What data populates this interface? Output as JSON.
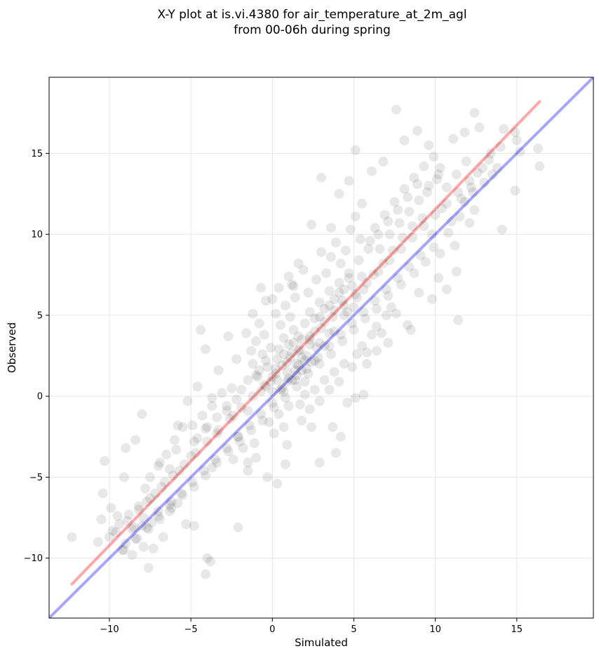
{
  "chart_data": {
    "type": "scatter",
    "title_lines": [
      "X-Y plot at is.vi.4380 for air_temperature_at_2m_agl",
      "from 00-06h during spring"
    ],
    "xlabel": "Simulated",
    "ylabel": "Observed",
    "xlim": [
      -13.7,
      19.7
    ],
    "ylim": [
      -13.7,
      19.7
    ],
    "xticks": [
      -10,
      -5,
      0,
      5,
      10,
      15
    ],
    "yticks": [
      -10,
      -5,
      0,
      5,
      10,
      15
    ],
    "xtick_labels": [
      "−10",
      "−5",
      "0",
      "5",
      "10",
      "15"
    ],
    "ytick_labels": [
      "−10",
      "−5",
      "0",
      "5",
      "10",
      "15"
    ],
    "grid": true,
    "point_color": "#000000",
    "point_alpha": 0.09,
    "points": [
      [
        -12.3,
        -8.7
      ],
      [
        -10.7,
        -9.0
      ],
      [
        -10.3,
        -4.0
      ],
      [
        -10.4,
        -6.0
      ],
      [
        -9.9,
        -6.9
      ],
      [
        -10.5,
        -7.6
      ],
      [
        -9.5,
        -7.4
      ],
      [
        -9.1,
        -5.0
      ],
      [
        -9.0,
        -3.2
      ],
      [
        -8.4,
        -2.7
      ],
      [
        -8.0,
        -1.1
      ],
      [
        -8.6,
        -8.2
      ],
      [
        -8.0,
        -8.0
      ],
      [
        -7.6,
        -10.6
      ],
      [
        -7.3,
        -9.4
      ],
      [
        -7.9,
        -9.3
      ],
      [
        -8.6,
        -9.8
      ],
      [
        -6.7,
        -8.7
      ],
      [
        -6.9,
        -4.1
      ],
      [
        -6.3,
        -4.5
      ],
      [
        -5.8,
        -1.8
      ],
      [
        -5.2,
        -0.3
      ],
      [
        -4.6,
        0.6
      ],
      [
        -4.4,
        4.1
      ],
      [
        -4.1,
        2.9
      ],
      [
        -3.7,
        -0.1
      ],
      [
        -3.3,
        1.6
      ],
      [
        -2.7,
        3.7
      ],
      [
        -2.2,
        2.3
      ],
      [
        -1.2,
        5.1
      ],
      [
        -0.7,
        6.7
      ],
      [
        -0.4,
        5.9
      ],
      [
        0.0,
        6.0
      ],
      [
        0.4,
        6.7
      ],
      [
        1.2,
        6.9
      ],
      [
        2.4,
        10.6
      ],
      [
        3.0,
        13.5
      ],
      [
        3.6,
        8.6
      ],
      [
        4.1,
        12.5
      ],
      [
        4.7,
        13.3
      ],
      [
        5.1,
        15.2
      ],
      [
        5.5,
        11.9
      ],
      [
        6.1,
        13.9
      ],
      [
        6.8,
        14.5
      ],
      [
        7.6,
        17.7
      ],
      [
        8.1,
        15.8
      ],
      [
        8.9,
        16.4
      ],
      [
        9.6,
        15.5
      ],
      [
        10.3,
        14.1
      ],
      [
        11.1,
        15.9
      ],
      [
        11.8,
        16.3
      ],
      [
        12.4,
        17.5
      ],
      [
        12.7,
        16.6
      ],
      [
        13.3,
        14.6
      ],
      [
        14.2,
        16.5
      ],
      [
        14.9,
        16.3
      ],
      [
        15.0,
        15.8
      ],
      [
        15.2,
        15.1
      ],
      [
        16.3,
        15.3
      ],
      [
        16.4,
        14.2
      ],
      [
        14.9,
        12.7
      ],
      [
        14.1,
        10.3
      ],
      [
        12.1,
        10.7
      ],
      [
        11.3,
        7.7
      ],
      [
        11.4,
        4.7
      ],
      [
        10.2,
        7.3
      ],
      [
        10.7,
        6.6
      ],
      [
        9.8,
        6.0
      ],
      [
        9.0,
        6.4
      ],
      [
        8.3,
        4.4
      ],
      [
        7.1,
        3.3
      ],
      [
        8.5,
        4.1
      ],
      [
        6.4,
        2.8
      ],
      [
        5.8,
        2.0
      ],
      [
        5.6,
        0.1
      ],
      [
        5.1,
        -0.1
      ],
      [
        4.6,
        -0.4
      ],
      [
        4.2,
        -2.5
      ],
      [
        3.7,
        -1.9
      ],
      [
        3.9,
        -3.5
      ],
      [
        2.9,
        -4.1
      ],
      [
        2.4,
        -1.9
      ],
      [
        1.8,
        -1.5
      ],
      [
        0.9,
        -3.0
      ],
      [
        0.8,
        -4.2
      ],
      [
        0.3,
        -5.4
      ],
      [
        -0.3,
        -5.0
      ],
      [
        -1.0,
        -3.8
      ],
      [
        -1.5,
        -4.1
      ],
      [
        -2.1,
        -8.1
      ],
      [
        -3.7,
        -4.4
      ],
      [
        -3.8,
        -10.2
      ],
      [
        -4.0,
        -10.0
      ],
      [
        -4.1,
        -11.0
      ],
      [
        -4.8,
        -8.0
      ],
      [
        -5.3,
        -7.9
      ],
      [
        -5.8,
        -6.6
      ],
      [
        -6.3,
        -7.1
      ],
      [
        -7.0,
        -7.1
      ],
      [
        -7.2,
        -6.0
      ],
      [
        -7.8,
        -5.7
      ],
      [
        -6.2,
        -6.5
      ],
      [
        -6.6,
        -5.3
      ],
      [
        -5.7,
        -4.6
      ],
      [
        -5.9,
        -3.3
      ],
      [
        -5.0,
        -3.7
      ],
      [
        -4.8,
        -2.8
      ],
      [
        -4.1,
        -2.0
      ],
      [
        -3.4,
        -2.3
      ],
      [
        -2.8,
        -0.6
      ],
      [
        -2.4,
        -1.2
      ],
      [
        -1.9,
        0.4
      ],
      [
        -1.5,
        -0.9
      ],
      [
        -1.0,
        1.3
      ],
      [
        -0.7,
        0.3
      ],
      [
        -0.4,
        2.2
      ],
      [
        -0.1,
        0.9
      ],
      [
        0.2,
        1.7
      ],
      [
        0.5,
        0.4
      ],
      [
        0.7,
        2.6
      ],
      [
        1.0,
        1.1
      ],
      [
        1.3,
        3.3
      ],
      [
        1.6,
        1.9
      ],
      [
        1.8,
        2.4
      ],
      [
        2.0,
        0.9
      ],
      [
        2.3,
        3.7
      ],
      [
        2.6,
        2.2
      ],
      [
        2.9,
        4.9
      ],
      [
        3.2,
        3.1
      ],
      [
        3.5,
        5.6
      ],
      [
        3.8,
        4.0
      ],
      [
        4.1,
        6.4
      ],
      [
        4.4,
        5.0
      ],
      [
        4.7,
        7.3
      ],
      [
        5.0,
        5.5
      ],
      [
        5.3,
        8.4
      ],
      [
        5.6,
        6.6
      ],
      [
        5.9,
        9.1
      ],
      [
        6.2,
        7.5
      ],
      [
        6.5,
        10.0
      ],
      [
        6.8,
        8.2
      ],
      [
        7.1,
        10.8
      ],
      [
        7.4,
        9.0
      ],
      [
        7.7,
        11.5
      ],
      [
        8.0,
        9.8
      ],
      [
        8.3,
        12.3
      ],
      [
        8.6,
        10.5
      ],
      [
        8.9,
        13.1
      ],
      [
        9.2,
        11.0
      ],
      [
        9.5,
        12.6
      ],
      [
        9.8,
        10.0
      ],
      [
        10.1,
        13.4
      ],
      [
        10.4,
        11.6
      ],
      [
        10.7,
        12.9
      ],
      [
        11.0,
        10.8
      ],
      [
        11.3,
        13.7
      ],
      [
        11.6,
        12.2
      ],
      [
        11.9,
        14.5
      ],
      [
        12.2,
        12.9
      ],
      [
        12.6,
        13.8
      ],
      [
        13.0,
        13.2
      ],
      [
        13.4,
        15.0
      ],
      [
        13.8,
        14.1
      ],
      [
        12.4,
        11.5
      ],
      [
        11.2,
        9.3
      ],
      [
        10.3,
        8.8
      ],
      [
        9.4,
        8.3
      ],
      [
        8.7,
        7.6
      ],
      [
        7.9,
        6.9
      ],
      [
        7.1,
        6.2
      ],
      [
        6.4,
        5.4
      ],
      [
        5.7,
        4.8
      ],
      [
        5.0,
        4.1
      ],
      [
        4.3,
        3.4
      ],
      [
        3.6,
        2.6
      ],
      [
        2.9,
        2.0
      ],
      [
        2.2,
        1.4
      ],
      [
        1.5,
        0.6
      ],
      [
        0.8,
        -0.1
      ],
      [
        0.1,
        -0.7
      ],
      [
        -0.6,
        -1.5
      ],
      [
        -1.3,
        -2.1
      ],
      [
        -2.0,
        -2.8
      ],
      [
        -2.7,
        -3.4
      ],
      [
        -3.4,
        -4.1
      ],
      [
        -4.1,
        -4.9
      ],
      [
        -4.8,
        -5.6
      ],
      [
        -5.5,
        -6.1
      ],
      [
        -6.2,
        -6.9
      ],
      [
        -6.9,
        -7.6
      ],
      [
        -7.6,
        -8.2
      ],
      [
        -8.3,
        -8.8
      ],
      [
        -9.0,
        -9.1
      ],
      [
        -9.6,
        -8.4
      ],
      [
        -8.9,
        -7.7
      ],
      [
        -8.2,
        -7.0
      ],
      [
        -7.5,
        -6.3
      ],
      [
        -6.8,
        -5.6
      ],
      [
        -6.1,
        -4.9
      ],
      [
        -5.4,
        -4.2
      ],
      [
        -4.7,
        -3.5
      ],
      [
        -4.0,
        -2.8
      ],
      [
        -3.3,
        -2.1
      ],
      [
        -2.6,
        -1.4
      ],
      [
        -1.9,
        -0.7
      ],
      [
        -1.2,
        0.0
      ],
      [
        -0.5,
        0.7
      ],
      [
        0.2,
        1.4
      ],
      [
        0.9,
        2.1
      ],
      [
        1.6,
        2.8
      ],
      [
        2.3,
        3.5
      ],
      [
        3.0,
        4.2
      ],
      [
        3.7,
        4.9
      ],
      [
        4.4,
        5.6
      ],
      [
        5.1,
        6.3
      ],
      [
        5.8,
        7.0
      ],
      [
        6.5,
        7.7
      ],
      [
        7.2,
        8.4
      ],
      [
        7.9,
        9.1
      ],
      [
        8.6,
        9.8
      ],
      [
        9.3,
        10.5
      ],
      [
        10.0,
        11.2
      ],
      [
        10.7,
        11.9
      ],
      [
        11.4,
        12.6
      ],
      [
        12.1,
        13.3
      ],
      [
        0.0,
        0.3
      ],
      [
        0.3,
        1.0
      ],
      [
        0.6,
        0.5
      ],
      [
        0.9,
        1.5
      ],
      [
        1.2,
        1.0
      ],
      [
        1.5,
        2.0
      ],
      [
        1.8,
        1.6
      ],
      [
        2.1,
        2.5
      ],
      [
        2.4,
        2.1
      ],
      [
        2.7,
        3.0
      ],
      [
        0.4,
        2.9
      ],
      [
        0.7,
        3.6
      ],
      [
        1.0,
        3.2
      ],
      [
        1.3,
        4.1
      ],
      [
        1.6,
        3.7
      ],
      [
        -0.3,
        1.8
      ],
      [
        -0.6,
        2.6
      ],
      [
        -0.9,
        1.2
      ],
      [
        -1.2,
        2.0
      ],
      [
        -1.5,
        1.0
      ],
      [
        2.0,
        4.5
      ],
      [
        2.3,
        5.2
      ],
      [
        2.6,
        4.8
      ],
      [
        2.9,
        5.8
      ],
      [
        3.2,
        5.4
      ],
      [
        3.5,
        6.5
      ],
      [
        3.8,
        6.0
      ],
      [
        4.1,
        7.0
      ],
      [
        4.4,
        6.6
      ],
      [
        4.7,
        7.6
      ],
      [
        1.7,
        -0.5
      ],
      [
        2.0,
        0.1
      ],
      [
        2.3,
        -0.8
      ],
      [
        2.6,
        0.4
      ],
      [
        2.9,
        -0.3
      ],
      [
        3.2,
        1.0
      ],
      [
        3.5,
        0.4
      ],
      [
        3.8,
        1.5
      ],
      [
        4.1,
        0.9
      ],
      [
        4.4,
        2.0
      ],
      [
        4.9,
        1.8
      ],
      [
        5.2,
        2.6
      ],
      [
        5.5,
        3.1
      ],
      [
        5.8,
        2.7
      ],
      [
        6.1,
        3.8
      ],
      [
        6.4,
        4.3
      ],
      [
        6.7,
        3.9
      ],
      [
        7.0,
        5.0
      ],
      [
        7.3,
        5.5
      ],
      [
        7.6,
        5.1
      ],
      [
        -2.2,
        -0.2
      ],
      [
        -2.5,
        0.5
      ],
      [
        -2.8,
        -0.9
      ],
      [
        -3.1,
        0.2
      ],
      [
        -3.4,
        -1.3
      ],
      [
        -3.7,
        -0.6
      ],
      [
        -4.0,
        -1.9
      ],
      [
        -4.3,
        -1.2
      ],
      [
        -4.6,
        -2.6
      ],
      [
        -4.9,
        -1.8
      ],
      [
        -1.0,
        3.4
      ],
      [
        -1.3,
        2.8
      ],
      [
        -1.6,
        3.9
      ],
      [
        -0.8,
        4.5
      ],
      [
        -0.5,
        3.8
      ],
      [
        0.2,
        5.1
      ],
      [
        0.5,
        4.4
      ],
      [
        0.8,
        5.6
      ],
      [
        1.1,
        4.9
      ],
      [
        1.4,
        6.1
      ],
      [
        -0.2,
        -1.6
      ],
      [
        0.1,
        -2.3
      ],
      [
        0.4,
        -1.1
      ],
      [
        0.7,
        -1.9
      ],
      [
        1.0,
        -0.6
      ],
      [
        -1.8,
        -3.2
      ],
      [
        -2.1,
        -2.5
      ],
      [
        -2.4,
        -3.9
      ],
      [
        -1.5,
        -4.6
      ],
      [
        -1.1,
        -2.9
      ],
      [
        6.0,
        9.6
      ],
      [
        6.3,
        10.4
      ],
      [
        6.6,
        9.1
      ],
      [
        6.9,
        11.2
      ],
      [
        7.2,
        10.0
      ],
      [
        7.5,
        12.0
      ],
      [
        7.8,
        10.7
      ],
      [
        8.1,
        12.8
      ],
      [
        8.4,
        11.4
      ],
      [
        8.7,
        13.5
      ],
      [
        9.0,
        12.1
      ],
      [
        9.3,
        14.2
      ],
      [
        9.6,
        13.0
      ],
      [
        9.9,
        14.8
      ],
      [
        10.2,
        13.7
      ],
      [
        4.8,
        10.3
      ],
      [
        5.1,
        11.1
      ],
      [
        5.4,
        9.7
      ],
      [
        4.5,
        9.0
      ],
      [
        4.2,
        8.2
      ],
      [
        3.9,
        9.5
      ],
      [
        3.6,
        10.4
      ],
      [
        3.3,
        7.6
      ],
      [
        3.0,
        8.9
      ],
      [
        2.7,
        7.2
      ],
      [
        2.2,
        6.4
      ],
      [
        1.9,
        7.8
      ],
      [
        1.6,
        8.2
      ],
      [
        1.3,
        6.8
      ],
      [
        1.0,
        7.4
      ],
      [
        -6.5,
        -3.6
      ],
      [
        -7.0,
        -4.3
      ],
      [
        -7.5,
        -5.0
      ],
      [
        -6.0,
        -2.7
      ],
      [
        -5.5,
        -1.9
      ],
      [
        -9.8,
        -8.3
      ],
      [
        -9.4,
        -7.9
      ],
      [
        -8.8,
        -7.3
      ],
      [
        -8.2,
        -6.8
      ],
      [
        -7.7,
        -6.5
      ],
      [
        -10.0,
        -8.7
      ],
      [
        -9.2,
        -9.5
      ],
      [
        -8.5,
        -8.1
      ],
      [
        -7.9,
        -7.5
      ],
      [
        -7.4,
        -7.8
      ],
      [
        11.8,
        12.0
      ],
      [
        12.3,
        12.6
      ],
      [
        12.9,
        14.1
      ],
      [
        13.5,
        13.7
      ],
      [
        14.0,
        15.4
      ],
      [
        10.8,
        10.1
      ],
      [
        11.5,
        11.1
      ],
      [
        9.9,
        9.2
      ],
      [
        9.1,
        8.7
      ],
      [
        8.4,
        8.0
      ],
      [
        7.7,
        7.3
      ],
      [
        7.0,
        6.6
      ],
      [
        6.3,
        5.9
      ],
      [
        5.6,
        5.2
      ],
      [
        4.9,
        4.5
      ],
      [
        4.2,
        3.8
      ],
      [
        3.5,
        3.1
      ],
      [
        2.8,
        2.4
      ],
      [
        2.1,
        1.7
      ],
      [
        1.4,
        1.0
      ],
      [
        0.7,
        0.3
      ],
      [
        0.0,
        -0.4
      ],
      [
        -0.7,
        -1.1
      ],
      [
        -1.4,
        -1.8
      ],
      [
        -2.1,
        -2.5
      ],
      [
        -2.8,
        -3.2
      ],
      [
        -3.5,
        -3.9
      ],
      [
        -4.2,
        -4.6
      ],
      [
        -4.9,
        -5.3
      ],
      [
        -5.6,
        -6.0
      ],
      [
        -6.3,
        -6.7
      ],
      [
        -7.0,
        -7.4
      ],
      [
        -7.7,
        -8.1
      ],
      [
        -8.4,
        -8.8
      ],
      [
        -9.1,
        -9.5
      ],
      [
        1.1,
        2.4
      ],
      [
        1.4,
        1.6
      ],
      [
        1.7,
        2.9
      ],
      [
        2.0,
        2.2
      ],
      [
        2.3,
        3.2
      ],
      [
        0.6,
        1.9
      ],
      [
        0.9,
        0.9
      ],
      [
        1.2,
        2.7
      ],
      [
        1.5,
        1.3
      ],
      [
        1.8,
        3.5
      ],
      [
        2.6,
        4.0
      ],
      [
        2.9,
        3.3
      ],
      [
        3.2,
        4.6
      ],
      [
        3.5,
        3.9
      ],
      [
        3.8,
        5.3
      ],
      [
        4.3,
        5.9
      ],
      [
        4.6,
        5.2
      ],
      [
        4.9,
        6.8
      ],
      [
        5.2,
        6.1
      ],
      [
        5.5,
        7.4
      ],
      [
        0.3,
        2.3
      ],
      [
        -0.1,
        3.0
      ],
      [
        0.0,
        1.2
      ],
      [
        -0.4,
        0.6
      ],
      [
        -0.8,
        1.6
      ]
    ],
    "lines": [
      {
        "color": "#ff0000",
        "alpha": 0.35,
        "x": [
          -12.3,
          16.4
        ],
        "y": [
          -11.6,
          18.2
        ]
      },
      {
        "color": "#0000ff",
        "alpha": 0.35,
        "x": [
          -13.7,
          19.7
        ],
        "y": [
          -13.7,
          19.7
        ]
      }
    ]
  }
}
